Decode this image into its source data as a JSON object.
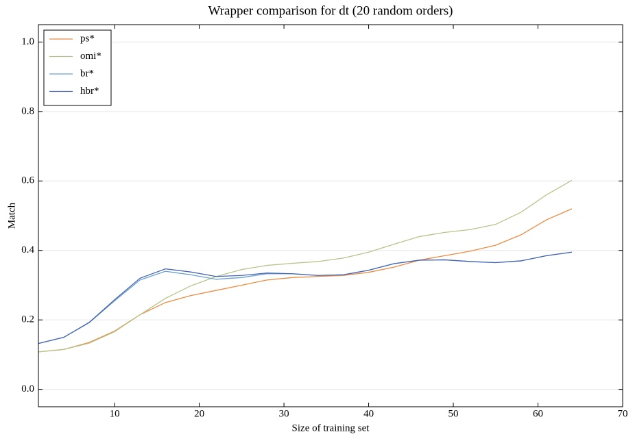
{
  "chart_data": {
    "type": "line",
    "title": "Wrapper comparison for dt (20 random orders)",
    "x_label": "Size of training set",
    "y_label": "Match",
    "x": [
      1,
      4,
      7,
      10,
      13,
      16,
      19,
      22,
      25,
      28,
      31,
      34,
      37,
      40,
      43,
      46,
      49,
      52,
      55,
      58,
      61,
      64
    ],
    "series": [
      {
        "name": "ps*",
        "color": "#ee8a40",
        "values": [
          0.108,
          0.115,
          0.135,
          0.168,
          0.215,
          0.25,
          0.27,
          0.285,
          0.3,
          0.315,
          0.322,
          0.325,
          0.328,
          0.337,
          0.352,
          0.372,
          0.385,
          0.398,
          0.415,
          0.445,
          0.488,
          0.52
        ]
      },
      {
        "name": "omi*",
        "color": "#b5c48a",
        "values": [
          0.108,
          0.115,
          0.133,
          0.166,
          0.215,
          0.262,
          0.298,
          0.325,
          0.345,
          0.357,
          0.363,
          0.368,
          0.378,
          0.395,
          0.418,
          0.44,
          0.452,
          0.46,
          0.475,
          0.51,
          0.56,
          0.602
        ]
      },
      {
        "name": "br*",
        "color": "#6a9fcf",
        "values": [
          0.132,
          0.15,
          0.192,
          0.255,
          0.315,
          0.34,
          0.33,
          0.317,
          0.322,
          0.333,
          0.333,
          0.328,
          0.33,
          0.343,
          0.362,
          0.372,
          0.373,
          0.368,
          0.365,
          0.37,
          0.385,
          0.395
        ]
      },
      {
        "name": "hbr*",
        "color": "#4565b4",
        "values": [
          0.132,
          0.15,
          0.193,
          0.258,
          0.32,
          0.347,
          0.338,
          0.325,
          0.328,
          0.335,
          0.333,
          0.328,
          0.33,
          0.343,
          0.362,
          0.372,
          0.373,
          0.368,
          0.365,
          0.37,
          0.385,
          0.395
        ]
      }
    ],
    "xlim": [
      1,
      70
    ],
    "xticks": [
      10,
      20,
      30,
      40,
      50,
      60,
      70
    ],
    "ylim": [
      -0.05,
      1.05
    ],
    "yticks": [
      {
        "value": 0,
        "label": "0.0"
      },
      0.2,
      0.4,
      0.6,
      0.8,
      {
        "value": 1,
        "label": "1.0"
      }
    ],
    "grid": true,
    "legend": "upper-left"
  }
}
